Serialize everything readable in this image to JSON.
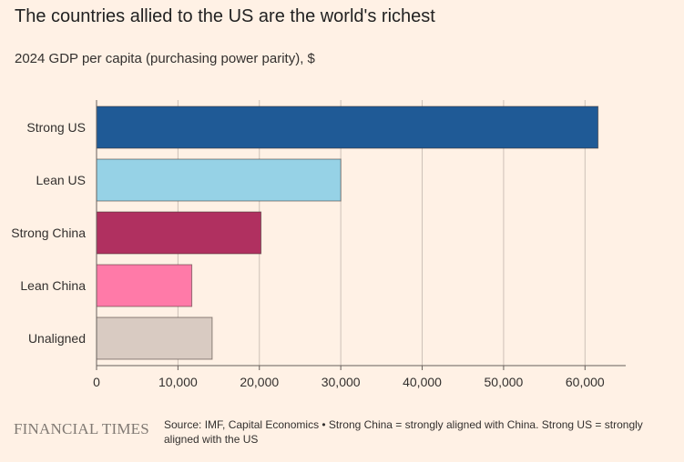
{
  "title": "The countries allied to the US are the world's richest",
  "subtitle": "2024 GDP per capita (purchasing power parity), $",
  "footer": {
    "logo": "FINANCIAL TIMES",
    "source": "Source: IMF, Capital Economics • Strong China = strongly aligned with China. Strong US = strongly aligned with the US"
  },
  "chart_data": {
    "type": "bar",
    "orientation": "horizontal",
    "categories": [
      "Strong US",
      "Lean US",
      "Strong China",
      "Lean China",
      "Unaligned"
    ],
    "values": [
      61600,
      30000,
      20200,
      11700,
      14200
    ],
    "colors": [
      "#1f5a96",
      "#96d2e6",
      "#b03060",
      "#ff7aa8",
      "#d9cbc2"
    ],
    "xlim": [
      0,
      65000
    ],
    "xticks": [
      0,
      10000,
      20000,
      30000,
      40000,
      50000,
      60000
    ],
    "xtick_labels": [
      "0",
      "10,000",
      "20,000",
      "30,000",
      "40,000",
      "50,000",
      "60,000"
    ],
    "grid": true,
    "title": "The countries allied to the US are the world's richest",
    "subtitle": "2024 GDP per capita (purchasing power parity), $",
    "xlabel": "",
    "ylabel": ""
  }
}
